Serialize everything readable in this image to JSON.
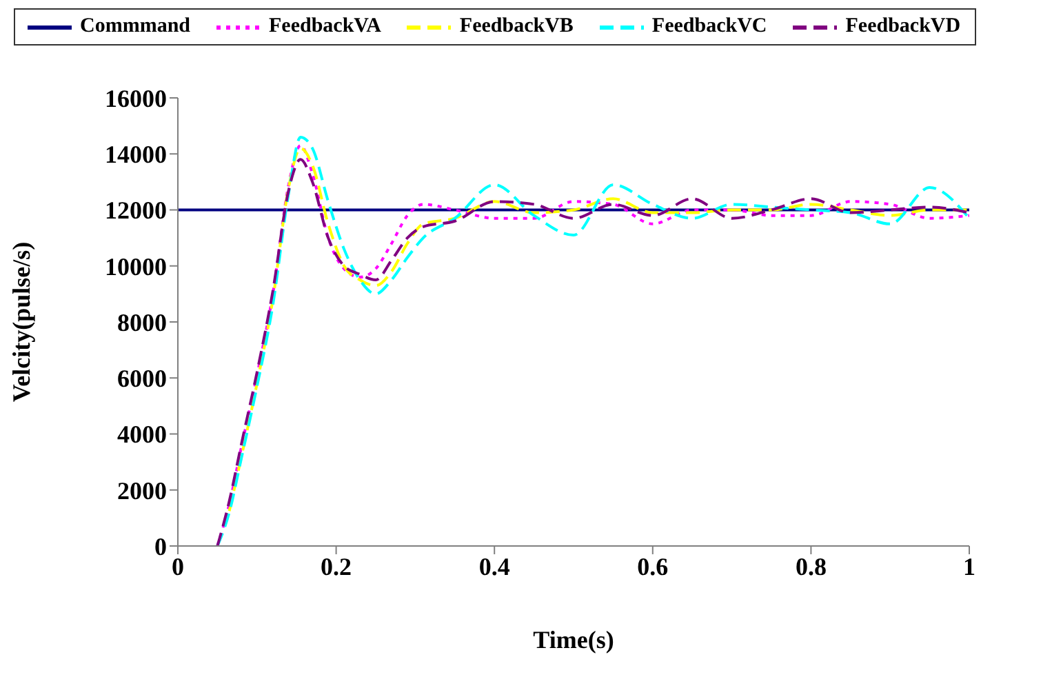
{
  "chart_data": {
    "type": "line",
    "xlabel": "Time(s)",
    "ylabel": "Velcity(pulse/s)",
    "xlim": [
      0,
      1
    ],
    "xticks": [
      0,
      0.2,
      0.4,
      0.6,
      0.8,
      1
    ],
    "ylim": [
      0,
      16000
    ],
    "yticks": [
      0,
      2000,
      4000,
      6000,
      8000,
      10000,
      12000,
      14000,
      16000
    ],
    "legend": "top",
    "marker": "none",
    "x": [
      0.05,
      0.065,
      0.08,
      0.1,
      0.12,
      0.14,
      0.155,
      0.17,
      0.19,
      0.21,
      0.23,
      0.25,
      0.27,
      0.29,
      0.31,
      0.35,
      0.4,
      0.45,
      0.5,
      0.55,
      0.6,
      0.65,
      0.7,
      0.75,
      0.8,
      0.85,
      0.9,
      0.95,
      1
    ],
    "series": [
      {
        "name": "Commmand",
        "color": "#000080",
        "line_style": "solid",
        "x": [
          0,
          1
        ],
        "values": [
          12000,
          12000
        ]
      },
      {
        "name": "FeedbackVA",
        "color": "#ff00ff",
        "line_style": "dotted",
        "values": [
          0,
          1500,
          3500,
          6100,
          9000,
          12900,
          14300,
          13300,
          11000,
          9900,
          9600,
          9900,
          10800,
          11800,
          12200,
          12000,
          11700,
          11700,
          12300,
          12200,
          11500,
          12000,
          12000,
          11800,
          11800,
          12300,
          12200,
          11700,
          11800
        ]
      },
      {
        "name": "FeedbackVB",
        "color": "#ffff00",
        "line_style": "dashed",
        "values": [
          null,
          1250,
          3150,
          5800,
          8800,
          12800,
          14200,
          13600,
          11500,
          10000,
          9500,
          9300,
          9800,
          10800,
          11500,
          11700,
          12300,
          11900,
          12000,
          12400,
          11900,
          11900,
          12000,
          12000,
          12200,
          12000,
          11800,
          12000,
          12000
        ]
      },
      {
        "name": "FeedbackVC",
        "color": "#00ffff",
        "line_style": "dashed",
        "values": [
          0,
          1200,
          3100,
          5700,
          8600,
          12600,
          14600,
          14200,
          12300,
          10600,
          9500,
          9000,
          9500,
          10300,
          11000,
          11700,
          12900,
          11800,
          11100,
          12900,
          12200,
          11700,
          12200,
          12100,
          12000,
          11900,
          11500,
          12800,
          11700
        ]
      },
      {
        "name": "FeedbackVD",
        "color": "#800080",
        "line_style": "dashed",
        "values": [
          0,
          1600,
          3600,
          6200,
          9100,
          12700,
          13800,
          13000,
          11000,
          10000,
          9700,
          9500,
          10200,
          11000,
          11400,
          11600,
          12300,
          12200,
          11700,
          12200,
          11800,
          12400,
          11700,
          12000,
          12400,
          11900,
          12000,
          12100,
          11900
        ]
      }
    ]
  }
}
